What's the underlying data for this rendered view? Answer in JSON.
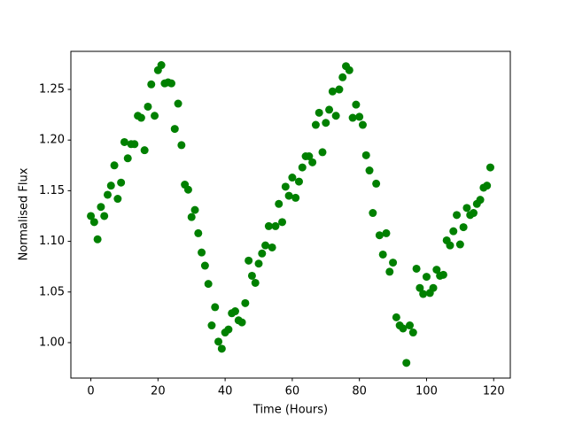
{
  "chart_data": {
    "type": "scatter",
    "x_label": "Time (Hours)",
    "y_label": "Normalised Flux",
    "color": "#008000",
    "x": [
      0,
      1,
      2,
      3,
      4,
      5,
      6,
      7,
      8,
      9,
      10,
      11,
      12,
      13,
      14,
      15,
      16,
      17,
      18,
      19,
      20,
      21,
      22,
      23,
      24,
      25,
      26,
      27,
      28,
      29,
      30,
      31,
      32,
      33,
      34,
      35,
      36,
      37,
      38,
      39,
      40,
      41,
      42,
      43,
      44,
      45,
      46,
      47,
      48,
      49,
      50,
      51,
      52,
      53,
      54,
      55,
      56,
      57,
      58,
      59,
      60,
      61,
      62,
      63,
      64,
      65,
      66,
      67,
      68,
      69,
      70,
      71,
      72,
      73,
      74,
      75,
      76,
      77,
      78,
      79,
      80,
      81,
      82,
      83,
      84,
      85,
      86,
      87,
      88,
      89,
      90,
      91,
      92,
      93,
      94,
      95,
      96,
      97,
      98,
      99,
      100,
      101,
      102,
      103,
      104,
      105,
      106,
      107,
      108,
      109,
      110,
      111,
      112,
      113,
      114,
      115,
      116,
      117,
      118,
      119
    ],
    "values": [
      1.125,
      1.119,
      1.102,
      1.134,
      1.125,
      1.146,
      1.155,
      1.175,
      1.142,
      1.158,
      1.198,
      1.182,
      1.196,
      1.196,
      1.224,
      1.222,
      1.19,
      1.233,
      1.255,
      1.224,
      1.269,
      1.274,
      1.256,
      1.257,
      1.256,
      1.211,
      1.236,
      1.195,
      1.156,
      1.151,
      1.124,
      1.131,
      1.108,
      1.089,
      1.076,
      1.058,
      1.017,
      1.035,
      1.001,
      0.994,
      1.01,
      1.013,
      1.029,
      1.031,
      1.022,
      1.02,
      1.039,
      1.081,
      1.066,
      1.059,
      1.078,
      1.088,
      1.096,
      1.115,
      1.094,
      1.115,
      1.137,
      1.119,
      1.154,
      1.145,
      1.163,
      1.143,
      1.159,
      1.173,
      1.184,
      1.184,
      1.178,
      1.215,
      1.227,
      1.188,
      1.217,
      1.23,
      1.248,
      1.224,
      1.25,
      1.262,
      1.273,
      1.269,
      1.222,
      1.235,
      1.223,
      1.215,
      1.185,
      1.17,
      1.128,
      1.157,
      1.106,
      1.087,
      1.108,
      1.07,
      1.079,
      1.025,
      1.017,
      1.014,
      0.98,
      1.017,
      1.01,
      1.073,
      1.054,
      1.048,
      1.065,
      1.049,
      1.054,
      1.072,
      1.066,
      1.067,
      1.101,
      1.096,
      1.11,
      1.126,
      1.097,
      1.114,
      1.133,
      1.126,
      1.128,
      1.137,
      1.141,
      1.153,
      1.155,
      1.173
    ],
    "xlim": [
      -5.95,
      124.95
    ],
    "xticks": [
      0,
      20,
      40,
      60,
      80,
      100,
      120
    ],
    "ylim": [
      0.965,
      1.2876
    ],
    "yticks": [
      {
        "value": 1.0,
        "label": "1.00"
      },
      {
        "value": 1.05,
        "label": "1.05"
      },
      {
        "value": 1.1,
        "label": "1.10"
      },
      {
        "value": 1.15,
        "label": "1.15"
      },
      {
        "value": 1.2,
        "label": "1.20"
      },
      {
        "value": 1.25,
        "label": "1.25"
      }
    ],
    "grid": false
  }
}
